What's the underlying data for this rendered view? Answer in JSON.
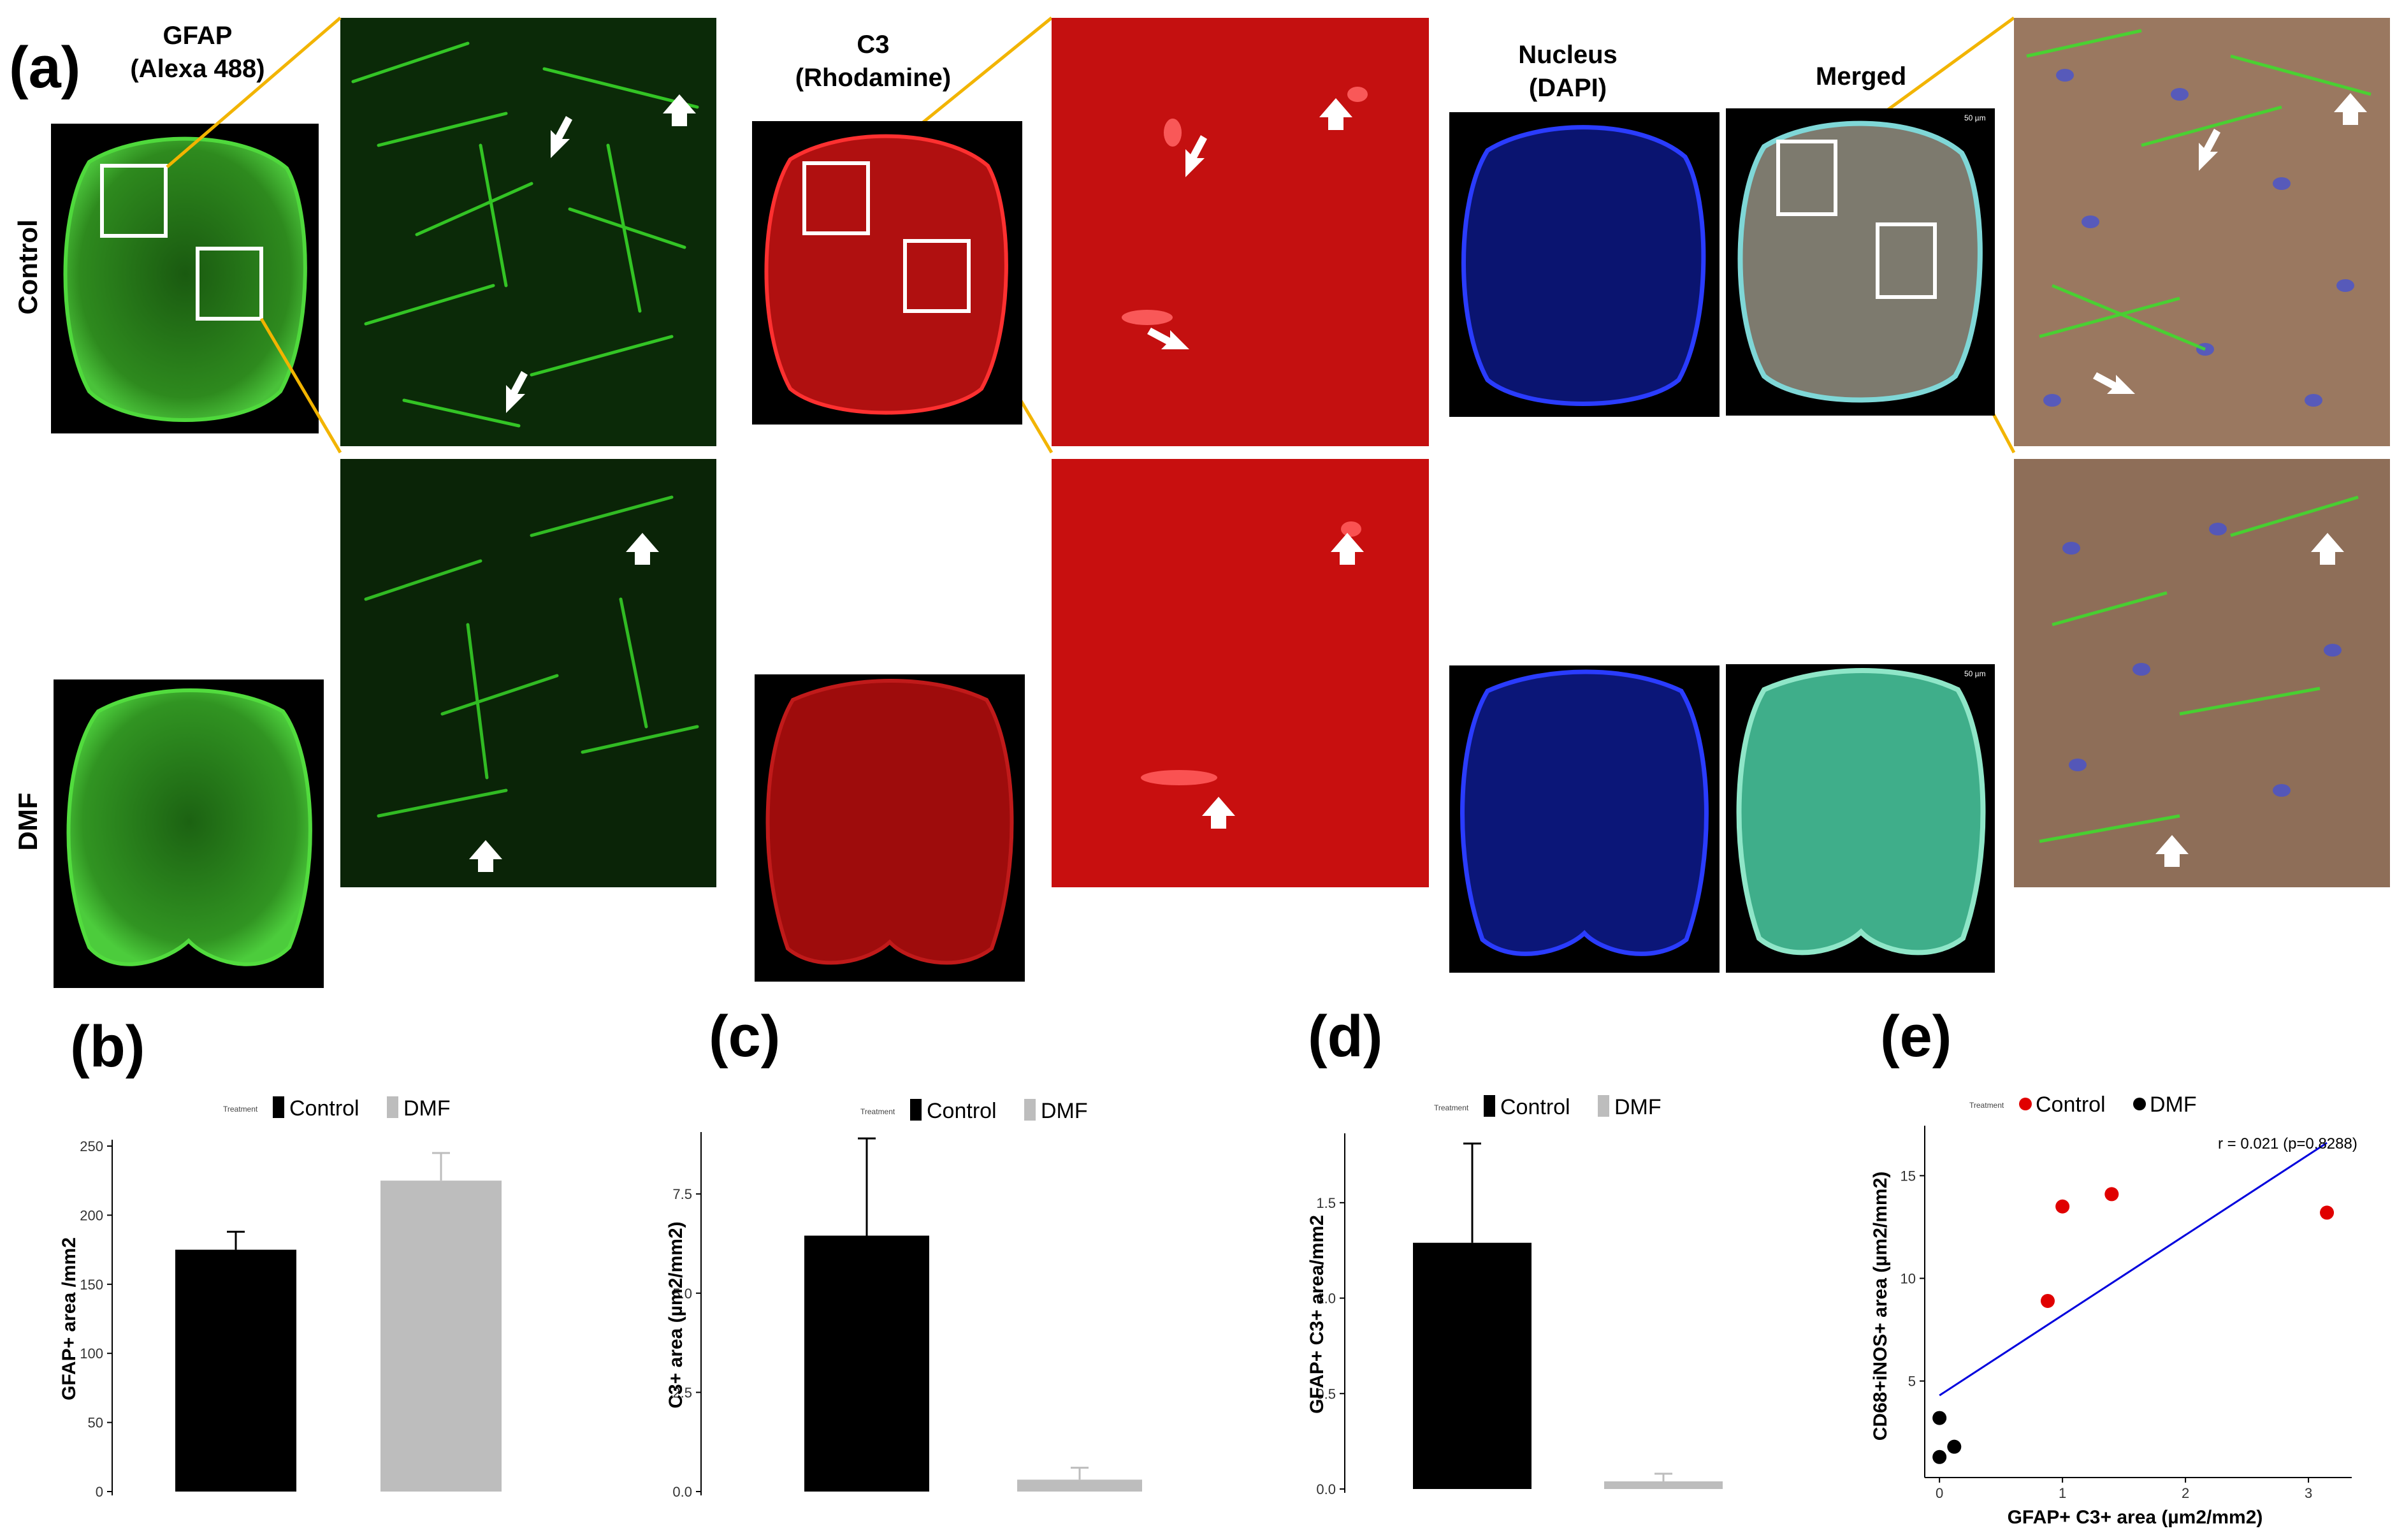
{
  "figure": {
    "panel_labels": [
      "(a)",
      "(b)",
      "(c)",
      "(d)",
      "(e)"
    ],
    "stains": {
      "gfap": "GFAP\n(Alexa 488)",
      "c3": "C3\n(Rhodamine)",
      "nucleus": "Nucleus\n(DAPI)",
      "merged": "Merged"
    },
    "rows": {
      "control": "Control",
      "dmf": "DMF"
    },
    "scale_bar": "50 µm",
    "colors": {
      "gfap": "#35d42a",
      "c3": "#e01010",
      "dapi": "#1a2cf0",
      "merged_bg": "#9a7860",
      "zoom_line": "#f2b400",
      "control_bar": "#000000",
      "dmf_bar": "#bdbdbd",
      "control_point": "#e00000",
      "dmf_point": "#000000",
      "fit_line": "#0000dd"
    }
  },
  "chart_data": [
    {
      "panel": "(b)",
      "type": "bar",
      "legend_title": "Treatment",
      "legend_position": "top",
      "categories": [
        "Control",
        "DMF"
      ],
      "values": [
        175,
        225
      ],
      "errors": [
        13,
        20
      ],
      "xlabel": "",
      "ylabel": "GFAP+ area /mm2",
      "ylim": [
        0,
        250
      ],
      "yticks": [
        "0",
        "50",
        "100",
        "150",
        "200",
        "250"
      ],
      "grid": false
    },
    {
      "panel": "(c)",
      "type": "bar",
      "legend_title": "Treatment",
      "legend_position": "top",
      "categories": [
        "Control",
        "DMF"
      ],
      "values": [
        6.45,
        0.3
      ],
      "errors": [
        2.45,
        0.3
      ],
      "xlabel": "",
      "ylabel": "C3+ area (µm2/mm2)",
      "ylim": [
        0,
        8.9
      ],
      "yticks": [
        "0.0",
        "2.5",
        "5.0",
        "7.5"
      ],
      "grid": false
    },
    {
      "panel": "(d)",
      "type": "bar",
      "legend_title": "Treatment",
      "legend_position": "top",
      "categories": [
        "Control",
        "DMF"
      ],
      "values": [
        1.29,
        0.04
      ],
      "errors": [
        0.52,
        0.04
      ],
      "xlabel": "",
      "ylabel": "GFAP+ C3+ area/mm2",
      "ylim": [
        0,
        1.83
      ],
      "yticks": [
        "0.0",
        "0.5",
        "1.0",
        "1.5"
      ],
      "grid": false
    },
    {
      "panel": "(e)",
      "type": "scatter",
      "legend_title": "Treatment",
      "legend_position": "top",
      "series": [
        {
          "name": "Control",
          "x": [
            0.88,
            1.0,
            1.4,
            3.15
          ],
          "y": [
            8.9,
            13.5,
            14.1,
            13.2
          ]
        },
        {
          "name": "DMF",
          "x": [
            0.0,
            0.0,
            0.12
          ],
          "y": [
            3.2,
            1.3,
            1.8
          ]
        }
      ],
      "fit_line": {
        "x": [
          0.0,
          3.15
        ],
        "y": [
          4.3,
          16.6
        ]
      },
      "annotation": "r = 0.021 (p=0.8288)",
      "xlabel": "GFAP+ C3+ area (µm2/mm2)",
      "ylabel": "CD68+iNOS+ area (µm2/mm2)",
      "xlim": [
        -0.12,
        3.3
      ],
      "ylim": [
        0.3,
        17.0
      ],
      "xticks": [
        "0",
        "1",
        "2",
        "3"
      ],
      "yticks": [
        "5",
        "10",
        "15"
      ],
      "grid": false
    }
  ]
}
